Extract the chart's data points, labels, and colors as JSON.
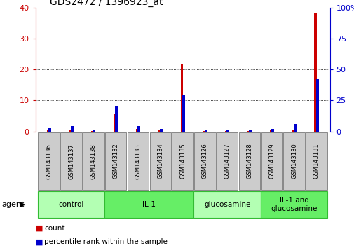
{
  "title": "GDS2472 / 1396923_at",
  "samples": [
    "GSM143136",
    "GSM143137",
    "GSM143138",
    "GSM143132",
    "GSM143133",
    "GSM143134",
    "GSM143135",
    "GSM143126",
    "GSM143127",
    "GSM143128",
    "GSM143129",
    "GSM143130",
    "GSM143131"
  ],
  "count_values": [
    0.3,
    0.5,
    0.2,
    5.5,
    0.8,
    0.3,
    21.5,
    0.2,
    0.2,
    0.2,
    0.3,
    0.5,
    38.0
  ],
  "percentile_values": [
    2.5,
    4.5,
    1.0,
    20.0,
    4.5,
    2.0,
    30.0,
    1.0,
    1.0,
    1.0,
    2.0,
    6.0,
    42.0
  ],
  "groups": [
    {
      "label": "control",
      "start": 0,
      "end": 3,
      "color": "#b3ffb3"
    },
    {
      "label": "IL-1",
      "start": 3,
      "end": 7,
      "color": "#66ee66"
    },
    {
      "label": "glucosamine",
      "start": 7,
      "end": 10,
      "color": "#b3ffb3"
    },
    {
      "label": "IL-1 and\nglucosamine",
      "start": 10,
      "end": 13,
      "color": "#66ee66"
    }
  ],
  "ylim_left": [
    0,
    40
  ],
  "ylim_right": [
    0,
    100
  ],
  "left_ticks": [
    0,
    10,
    20,
    30,
    40
  ],
  "right_ticks": [
    0,
    25,
    50,
    75,
    100
  ],
  "left_tick_labels": [
    "0",
    "10",
    "20",
    "30",
    "40"
  ],
  "right_tick_labels": [
    "0",
    "25",
    "50",
    "75",
    "100%"
  ],
  "right_tick_labels_top": "100%",
  "count_color": "#cc0000",
  "percentile_color": "#0000cc",
  "bar_width": 0.12,
  "tick_label_color_left": "#cc0000",
  "tick_label_color_right": "#0000cc",
  "grid_color": "#000000",
  "sample_box_color": "#cccccc",
  "background_color": "#ffffff"
}
